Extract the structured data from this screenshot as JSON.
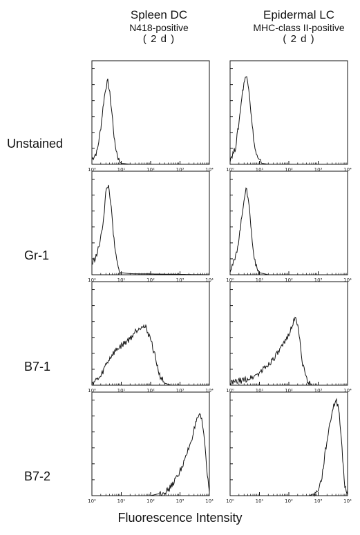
{
  "columns": [
    {
      "title": "Spleen DC",
      "subtitle": "N418-positive",
      "note": "( 2 d )"
    },
    {
      "title": "Epidermal LC",
      "subtitle": "MHC-class II-positive",
      "note": "( 2 d )"
    }
  ],
  "rows": [
    {
      "label": "Unstained"
    },
    {
      "label": "Gr-1"
    },
    {
      "label": "B7-1"
    },
    {
      "label": "B7-2"
    }
  ],
  "xlabel": "Fluorescence Intensity",
  "chart_data": {
    "type": "area",
    "xscale": "log",
    "xlim": [
      1,
      10000
    ],
    "x_tick_labels": [
      "10⁰",
      "10¹",
      "10²",
      "10³",
      "10⁴"
    ],
    "grid": false,
    "panels": [
      {
        "column": "Spleen DC",
        "row": "Unstained",
        "peak_x": 3.5,
        "points": [
          [
            1,
            0.05
          ],
          [
            1.5,
            0.12
          ],
          [
            2,
            0.35
          ],
          [
            2.5,
            0.6
          ],
          [
            3,
            0.75
          ],
          [
            3.5,
            0.8
          ],
          [
            4,
            0.7
          ],
          [
            5,
            0.45
          ],
          [
            6,
            0.2
          ],
          [
            8,
            0.05
          ],
          [
            10,
            0.01
          ],
          [
            20,
            0
          ],
          [
            10000,
            0
          ]
        ]
      },
      {
        "column": "Epidermal LC",
        "row": "Unstained",
        "peak_x": 3.8,
        "points": [
          [
            1,
            0.05
          ],
          [
            1.5,
            0.15
          ],
          [
            2,
            0.4
          ],
          [
            2.5,
            0.65
          ],
          [
            3,
            0.8
          ],
          [
            3.8,
            0.86
          ],
          [
            4.5,
            0.7
          ],
          [
            5.5,
            0.4
          ],
          [
            7,
            0.15
          ],
          [
            9,
            0.04
          ],
          [
            12,
            0.01
          ],
          [
            20,
            0
          ],
          [
            10000,
            0
          ]
        ]
      },
      {
        "column": "Spleen DC",
        "row": "Gr-1",
        "peak_x": 3.6,
        "points": [
          [
            1,
            0.1
          ],
          [
            1.5,
            0.2
          ],
          [
            2,
            0.35
          ],
          [
            2.5,
            0.55
          ],
          [
            3,
            0.8
          ],
          [
            3.6,
            0.87
          ],
          [
            4.2,
            0.75
          ],
          [
            5,
            0.5
          ],
          [
            6,
            0.25
          ],
          [
            8,
            0.05
          ],
          [
            10,
            0.02
          ],
          [
            20,
            0.01
          ],
          [
            10000,
            0
          ]
        ]
      },
      {
        "column": "Epidermal LC",
        "row": "Gr-1",
        "peak_x": 3.5,
        "points": [
          [
            1,
            0.05
          ],
          [
            1.5,
            0.15
          ],
          [
            2,
            0.35
          ],
          [
            2.5,
            0.55
          ],
          [
            3,
            0.75
          ],
          [
            3.5,
            0.82
          ],
          [
            4.2,
            0.75
          ],
          [
            5,
            0.5
          ],
          [
            6,
            0.25
          ],
          [
            8,
            0.06
          ],
          [
            10,
            0.02
          ],
          [
            20,
            0
          ],
          [
            10000,
            0
          ]
        ]
      },
      {
        "column": "Spleen DC",
        "row": "B7-1",
        "peak_x": 50,
        "points": [
          [
            1,
            0.02
          ],
          [
            2,
            0.08
          ],
          [
            3,
            0.2
          ],
          [
            5,
            0.3
          ],
          [
            8,
            0.36
          ],
          [
            12,
            0.4
          ],
          [
            20,
            0.45
          ],
          [
            30,
            0.52
          ],
          [
            50,
            0.58
          ],
          [
            70,
            0.55
          ],
          [
            100,
            0.45
          ],
          [
            150,
            0.25
          ],
          [
            200,
            0.1
          ],
          [
            300,
            0.02
          ],
          [
            500,
            0
          ],
          [
            10000,
            0
          ]
        ]
      },
      {
        "column": "Epidermal LC",
        "row": "B7-1",
        "peak_x": 180,
        "points": [
          [
            1,
            0.02
          ],
          [
            3,
            0.05
          ],
          [
            6,
            0.08
          ],
          [
            10,
            0.12
          ],
          [
            20,
            0.2
          ],
          [
            40,
            0.3
          ],
          [
            70,
            0.4
          ],
          [
            100,
            0.5
          ],
          [
            150,
            0.62
          ],
          [
            180,
            0.65
          ],
          [
            220,
            0.5
          ],
          [
            300,
            0.2
          ],
          [
            400,
            0.05
          ],
          [
            600,
            0
          ],
          [
            10000,
            0
          ]
        ]
      },
      {
        "column": "Spleen DC",
        "row": "B7-2",
        "peak_x": 4500,
        "points": [
          [
            1,
            0
          ],
          [
            100,
            0
          ],
          [
            200,
            0.02
          ],
          [
            400,
            0.05
          ],
          [
            800,
            0.18
          ],
          [
            1500,
            0.35
          ],
          [
            2500,
            0.55
          ],
          [
            3500,
            0.7
          ],
          [
            4500,
            0.78
          ],
          [
            5500,
            0.72
          ],
          [
            6500,
            0.6
          ],
          [
            7500,
            0.4
          ],
          [
            8500,
            0.2
          ],
          [
            10000,
            0.05
          ]
        ]
      },
      {
        "column": "Epidermal LC",
        "row": "B7-2",
        "peak_x": 4000,
        "points": [
          [
            1,
            0
          ],
          [
            500,
            0
          ],
          [
            900,
            0.03
          ],
          [
            1300,
            0.15
          ],
          [
            1800,
            0.45
          ],
          [
            2500,
            0.7
          ],
          [
            3200,
            0.85
          ],
          [
            4000,
            0.92
          ],
          [
            5000,
            0.85
          ],
          [
            6000,
            0.6
          ],
          [
            7000,
            0.3
          ],
          [
            8000,
            0.1
          ],
          [
            10000,
            0.02
          ]
        ]
      }
    ]
  }
}
